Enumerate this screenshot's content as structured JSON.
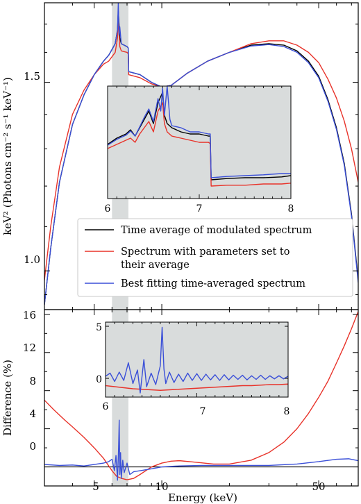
{
  "chart_data": [
    {
      "type": "line",
      "panel": "top",
      "xlabel": "",
      "ylabel": "keV² (Photons cm⁻² s⁻¹ keV⁻¹)",
      "xscale": "log",
      "yscale": "log",
      "xlim": [
        3.0,
        75.0
      ],
      "ylim": [
        0.92,
        1.78
      ],
      "yticks": [
        {
          "value": 1.0,
          "label": "1.0"
        },
        {
          "value": 1.5,
          "label": "1.5"
        }
      ],
      "shaded_band": [
        6.0,
        7.1
      ],
      "legend": {
        "placement": "center-bottom",
        "entries": [
          {
            "label_lines": [
              "Time average of modulated spectrum"
            ],
            "color": "#000000"
          },
          {
            "label_lines": [
              "Spectrum with parameters set to",
              "their average"
            ],
            "color": "#e8332a"
          },
          {
            "label_lines": [
              "Best fitting time-averaged spectrum"
            ],
            "color": "#3a4fd8"
          }
        ]
      },
      "series": [
        {
          "color": "#000000",
          "x": [
            3.0,
            3.2,
            3.5,
            4.0,
            4.5,
            5.0,
            5.5,
            5.8,
            6.0,
            6.2,
            6.35,
            6.4,
            6.5,
            6.6,
            7.0,
            7.09,
            7.12,
            8.0,
            9.0,
            10.0,
            11.0,
            13.0,
            16.0,
            20.0,
            25.0,
            30.0,
            35.0,
            40.0,
            45.0,
            50.0,
            55.0,
            60.0,
            65.0,
            70.0,
            75.0
          ],
          "y": [
            0.93,
            1.05,
            1.21,
            1.37,
            1.46,
            1.525,
            1.57,
            1.59,
            1.61,
            1.63,
            1.68,
            1.75,
            1.65,
            1.63,
            1.62,
            1.615,
            1.535,
            1.525,
            1.5,
            1.485,
            1.49,
            1.53,
            1.57,
            1.6,
            1.625,
            1.63,
            1.625,
            1.605,
            1.57,
            1.52,
            1.445,
            1.36,
            1.26,
            1.13,
            0.98
          ]
        },
        {
          "color": "#e8332a",
          "x": [
            3.0,
            3.2,
            3.5,
            4.0,
            4.5,
            5.0,
            5.5,
            5.8,
            6.0,
            6.2,
            6.35,
            6.4,
            6.5,
            6.6,
            7.0,
            7.09,
            7.12,
            8.0,
            9.0,
            10.0,
            11.0,
            13.0,
            16.0,
            20.0,
            25.0,
            30.0,
            35.0,
            40.0,
            45.0,
            50.0,
            55.0,
            60.0,
            65.0,
            70.0,
            75.0
          ],
          "y": [
            0.98,
            1.1,
            1.25,
            1.4,
            1.475,
            1.525,
            1.56,
            1.57,
            1.585,
            1.6,
            1.65,
            1.72,
            1.62,
            1.605,
            1.6,
            1.595,
            1.525,
            1.515,
            1.495,
            1.485,
            1.49,
            1.53,
            1.57,
            1.6,
            1.63,
            1.64,
            1.64,
            1.625,
            1.6,
            1.565,
            1.51,
            1.45,
            1.38,
            1.3,
            1.21
          ]
        },
        {
          "color": "#3a4fd8",
          "x": [
            3.0,
            3.2,
            3.5,
            4.0,
            4.5,
            5.0,
            5.5,
            5.8,
            6.0,
            6.2,
            6.35,
            6.4,
            6.45,
            6.5,
            6.6,
            7.0,
            7.09,
            7.12,
            8.0,
            9.0,
            10.0,
            11.0,
            13.0,
            16.0,
            20.0,
            25.0,
            30.0,
            35.0,
            40.0,
            45.0,
            50.0,
            55.0,
            60.0,
            65.0,
            70.0,
            75.0
          ],
          "y": [
            0.93,
            1.05,
            1.21,
            1.37,
            1.46,
            1.525,
            1.57,
            1.59,
            1.61,
            1.63,
            1.68,
            1.78,
            1.66,
            1.69,
            1.63,
            1.62,
            1.615,
            1.535,
            1.525,
            1.5,
            1.485,
            1.49,
            1.53,
            1.57,
            1.6,
            1.622,
            1.627,
            1.62,
            1.6,
            1.565,
            1.515,
            1.44,
            1.355,
            1.255,
            1.125,
            0.975
          ]
        }
      ]
    },
    {
      "type": "line",
      "panel": "top-inset",
      "xscale": "linear",
      "xlim": [
        6.0,
        8.0
      ],
      "ylim": [
        1.49,
        1.76
      ],
      "xticks": [
        {
          "value": 6,
          "label": "6"
        },
        {
          "value": 7,
          "label": "7"
        },
        {
          "value": 8,
          "label": "8"
        }
      ],
      "series": [
        {
          "color": "#000000",
          "x": [
            6.0,
            6.1,
            6.2,
            6.25,
            6.3,
            6.35,
            6.4,
            6.45,
            6.5,
            6.55,
            6.6,
            6.62,
            6.65,
            6.7,
            6.8,
            6.9,
            7.0,
            7.1,
            7.12,
            7.13,
            7.3,
            7.5,
            7.7,
            7.9,
            8.0
          ],
          "y": [
            1.62,
            1.635,
            1.645,
            1.655,
            1.64,
            1.66,
            1.68,
            1.7,
            1.67,
            1.72,
            1.745,
            1.69,
            1.67,
            1.66,
            1.65,
            1.645,
            1.645,
            1.64,
            1.64,
            1.535,
            1.538,
            1.54,
            1.54,
            1.542,
            1.545
          ]
        },
        {
          "color": "#e8332a",
          "x": [
            6.0,
            6.1,
            6.2,
            6.25,
            6.3,
            6.35,
            6.4,
            6.45,
            6.5,
            6.55,
            6.6,
            6.62,
            6.65,
            6.7,
            6.8,
            6.9,
            7.0,
            7.1,
            7.12,
            7.13,
            7.3,
            7.5,
            7.7,
            7.9,
            8.0
          ],
          "y": [
            1.61,
            1.62,
            1.63,
            1.635,
            1.625,
            1.645,
            1.66,
            1.675,
            1.65,
            1.7,
            1.72,
            1.67,
            1.65,
            1.64,
            1.635,
            1.63,
            1.625,
            1.625,
            1.622,
            1.52,
            1.522,
            1.522,
            1.525,
            1.525,
            1.527
          ]
        },
        {
          "color": "#3a4fd8",
          "x": [
            6.0,
            6.1,
            6.2,
            6.25,
            6.3,
            6.35,
            6.4,
            6.45,
            6.5,
            6.55,
            6.58,
            6.6,
            6.62,
            6.65,
            6.68,
            6.7,
            6.8,
            6.9,
            7.0,
            7.1,
            7.12,
            7.13,
            7.3,
            7.5,
            7.7,
            7.9,
            8.0
          ],
          "y": [
            1.618,
            1.632,
            1.642,
            1.652,
            1.64,
            1.662,
            1.685,
            1.705,
            1.675,
            1.73,
            1.7,
            1.755,
            1.69,
            1.76,
            1.68,
            1.665,
            1.66,
            1.65,
            1.65,
            1.645,
            1.645,
            1.54,
            1.543,
            1.545,
            1.547,
            1.55,
            1.55
          ]
        }
      ]
    },
    {
      "type": "line",
      "panel": "bottom",
      "xlabel": "Energy (keV)",
      "ylabel": "Difference (%)",
      "xscale": "log",
      "xlim": [
        3.0,
        75.0
      ],
      "ylim": [
        -2.0,
        16.5
      ],
      "xticks": [
        {
          "value": 5,
          "label": "5"
        },
        {
          "value": 10,
          "label": "10"
        },
        {
          "value": 50,
          "label": "50"
        }
      ],
      "yticks": [
        {
          "value": 0,
          "label": "0"
        },
        {
          "value": 4,
          "label": "4"
        },
        {
          "value": 8,
          "label": "8"
        },
        {
          "value": 12,
          "label": "12"
        },
        {
          "value": 16,
          "label": "16"
        }
      ],
      "shaded_band": [
        6.0,
        7.1
      ],
      "series": [
        {
          "color": "#000000",
          "x": [
            3.0,
            75.0
          ],
          "y": [
            0.0,
            0.0
          ]
        },
        {
          "color": "#e8332a",
          "x": [
            3.0,
            3.3,
            3.7,
            4.0,
            4.5,
            5.0,
            5.5,
            6.0,
            6.3,
            6.6,
            7.0,
            7.5,
            8.0,
            9.0,
            10.0,
            11.0,
            12.0,
            14.0,
            17.0,
            20.0,
            25.0,
            30.0,
            35.0,
            40.0,
            45.0,
            50.0,
            55.0,
            60.0,
            65.0,
            70.0,
            75.0
          ],
          "y": [
            7.0,
            6.0,
            4.9,
            4.2,
            3.1,
            2.0,
            0.9,
            -0.4,
            -1.0,
            -1.2,
            -1.35,
            -1.2,
            -0.8,
            0.0,
            0.4,
            0.6,
            0.65,
            0.5,
            0.3,
            0.3,
            0.7,
            1.5,
            2.6,
            4.0,
            5.6,
            7.3,
            9.0,
            10.9,
            12.7,
            14.5,
            16.3
          ]
        },
        {
          "color": "#3a4fd8",
          "x": [
            3.0,
            3.5,
            4.0,
            4.5,
            5.0,
            5.5,
            5.8,
            6.0,
            6.15,
            6.25,
            6.35,
            6.42,
            6.46,
            6.5,
            6.55,
            6.6,
            6.7,
            6.8,
            7.0,
            7.2,
            7.5,
            8.0,
            9.0,
            10.0,
            12.0,
            15.0,
            20.0,
            30.0,
            40.0,
            50.0,
            60.0,
            68.0,
            75.0
          ],
          "y": [
            0.25,
            0.15,
            0.2,
            0.1,
            0.25,
            0.4,
            0.55,
            0.8,
            -0.4,
            1.2,
            -1.4,
            2.0,
            4.9,
            -0.8,
            1.5,
            -1.2,
            0.7,
            -0.6,
            0.4,
            -0.8,
            -0.5,
            -0.4,
            -0.2,
            0.0,
            0.1,
            0.15,
            0.15,
            0.15,
            0.3,
            0.55,
            0.8,
            0.85,
            0.65
          ]
        }
      ]
    },
    {
      "type": "line",
      "panel": "bottom-inset",
      "xscale": "linear",
      "xlim": [
        6.0,
        8.0
      ],
      "ylim": [
        -1.8,
        5.4
      ],
      "xticks": [
        {
          "value": 6,
          "label": "6"
        },
        {
          "value": 7,
          "label": "7"
        },
        {
          "value": 8,
          "label": "8"
        }
      ],
      "yticks": [
        {
          "value": 0,
          "label": "0"
        },
        {
          "value": 5,
          "label": "5"
        }
      ],
      "series": [
        {
          "color": "#e8332a",
          "x": [
            6.0,
            6.1,
            6.2,
            6.3,
            6.4,
            6.5,
            6.6,
            6.7,
            6.8,
            6.9,
            7.0,
            7.1,
            7.2,
            7.3,
            7.4,
            7.5,
            7.6,
            7.7,
            7.8,
            7.9,
            8.0
          ],
          "y": [
            -0.7,
            -0.8,
            -0.9,
            -1.0,
            -1.05,
            -1.1,
            -1.15,
            -1.1,
            -1.05,
            -1.0,
            -0.95,
            -0.9,
            -0.85,
            -0.8,
            -0.75,
            -0.7,
            -0.7,
            -0.65,
            -0.6,
            -0.6,
            -0.55
          ]
        },
        {
          "color": "#3a4fd8",
          "x": [
            6.0,
            6.05,
            6.1,
            6.15,
            6.2,
            6.25,
            6.3,
            6.35,
            6.38,
            6.42,
            6.45,
            6.5,
            6.55,
            6.6,
            6.62,
            6.64,
            6.66,
            6.7,
            6.75,
            6.8,
            6.85,
            6.9,
            6.95,
            7.0,
            7.05,
            7.1,
            7.15,
            7.2,
            7.25,
            7.3,
            7.35,
            7.4,
            7.45,
            7.5,
            7.55,
            7.6,
            7.65,
            7.7,
            7.75,
            7.8,
            7.85,
            7.9,
            7.95,
            8.0
          ],
          "y": [
            0.2,
            0.5,
            -0.3,
            0.6,
            -0.2,
            1.5,
            -0.5,
            0.8,
            -1.4,
            1.8,
            -0.8,
            0.5,
            -0.6,
            1.2,
            4.9,
            0.9,
            -0.5,
            0.6,
            -0.4,
            0.4,
            -0.3,
            0.5,
            -0.2,
            0.45,
            -0.2,
            0.4,
            -0.15,
            0.35,
            -0.2,
            0.35,
            -0.15,
            0.3,
            -0.1,
            0.3,
            -0.15,
            0.25,
            -0.1,
            0.3,
            -0.1,
            0.25,
            -0.05,
            0.25,
            -0.05,
            0.2
          ]
        }
      ]
    }
  ]
}
